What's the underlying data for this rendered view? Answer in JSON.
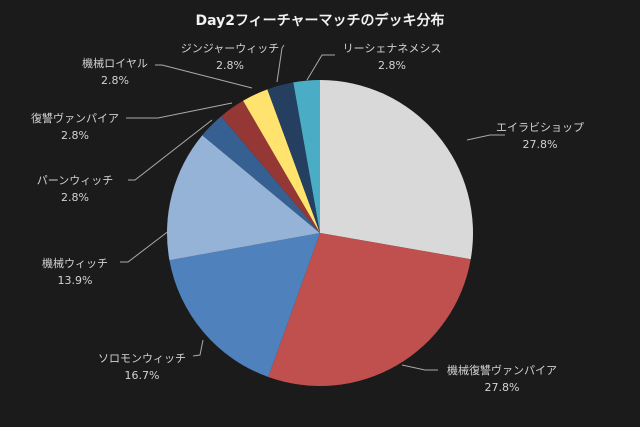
{
  "chart_data": {
    "type": "pie",
    "title": "Day2フィーチャーマッチのデッキ分布",
    "start_angle_deg": 0,
    "direction": "clockwise",
    "slices": [
      {
        "label": "エイラビショップ",
        "value": 27.8,
        "pct": "27.8%",
        "color": "#d9d9d9"
      },
      {
        "label": "機械復讐ヴァンパイア",
        "value": 27.8,
        "pct": "27.8%",
        "color": "#c0504d"
      },
      {
        "label": "ソロモンウィッチ",
        "value": 16.7,
        "pct": "16.7%",
        "color": "#4f81bd"
      },
      {
        "label": "機械ウィッチ",
        "value": 13.9,
        "pct": "13.9%",
        "color": "#95b3d7"
      },
      {
        "label": "パーンウィッチ",
        "value": 2.8,
        "pct": "2.8%",
        "color": "#366092"
      },
      {
        "label": "復讐ヴァンパイア",
        "value": 2.8,
        "pct": "2.8%",
        "color": "#953735"
      },
      {
        "label": "機械ロイヤル",
        "value": 2.8,
        "pct": "2.8%",
        "color": "#ffe36e"
      },
      {
        "label": "ジンジャーウィッチ",
        "value": 2.8,
        "pct": "2.8%",
        "color": "#243f60"
      },
      {
        "label": "リーシェナネメシス",
        "value": 2.8,
        "pct": "2.8%",
        "color": "#4bacc6"
      }
    ],
    "legend": "none",
    "data_labels": "outside with leader lines (category name + percentage)"
  },
  "colors": {
    "background": "#1b1b1b",
    "title": "#f2f2f2",
    "label_text": "#d2d2d2",
    "leader_line": "#aaaaaa"
  }
}
